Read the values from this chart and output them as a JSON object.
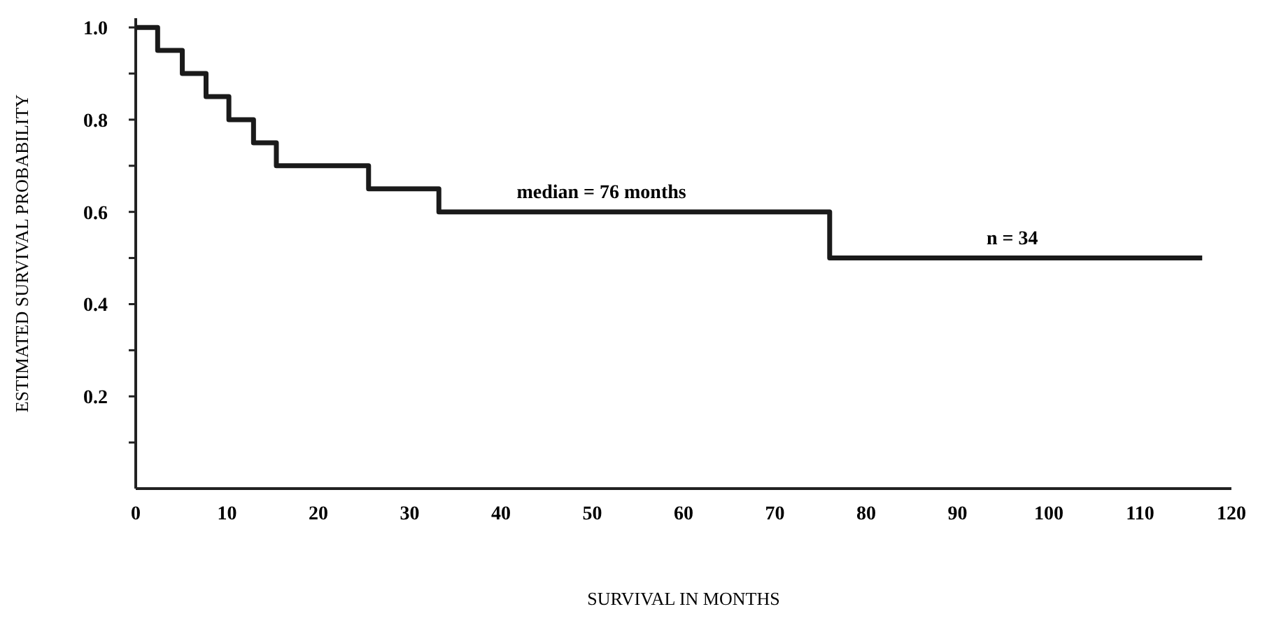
{
  "chart_data": {
    "type": "step",
    "xlabel": "SURVIVAL IN MONTHS",
    "ylabel": "ESTIMATED SURVIVAL PROBABILITY",
    "x": [
      0,
      2.4,
      5.1,
      7.7,
      10.2,
      12.9,
      15.4,
      25.5,
      33.2,
      76,
      116.8
    ],
    "values": [
      1,
      0.95,
      0.9,
      0.85,
      0.8,
      0.75,
      0.7,
      0.65,
      0.6,
      0.5,
      0.5
    ],
    "color": "#1a1a1a",
    "xlim": [
      0,
      120
    ],
    "xticks": [
      0,
      10,
      20,
      30,
      40,
      50,
      60,
      70,
      80,
      90,
      100,
      110,
      120
    ],
    "ylim": [
      0,
      1.02
    ],
    "yticks": [
      {
        "value": 0.1,
        "label": null
      },
      0.2,
      {
        "value": 0.3,
        "label": null
      },
      0.4,
      {
        "value": 0.5,
        "label": null
      },
      0.6,
      {
        "value": 0.7,
        "label": null
      },
      0.8,
      {
        "value": 0.9,
        "label": null
      },
      {
        "value": 1,
        "label": "1.0"
      }
    ],
    "annotations": [
      {
        "text": "median = 76 months",
        "x": 51,
        "y": 0.6
      },
      {
        "text": "n = 34",
        "x": 96,
        "y": 0.5
      }
    ],
    "grid": false
  }
}
